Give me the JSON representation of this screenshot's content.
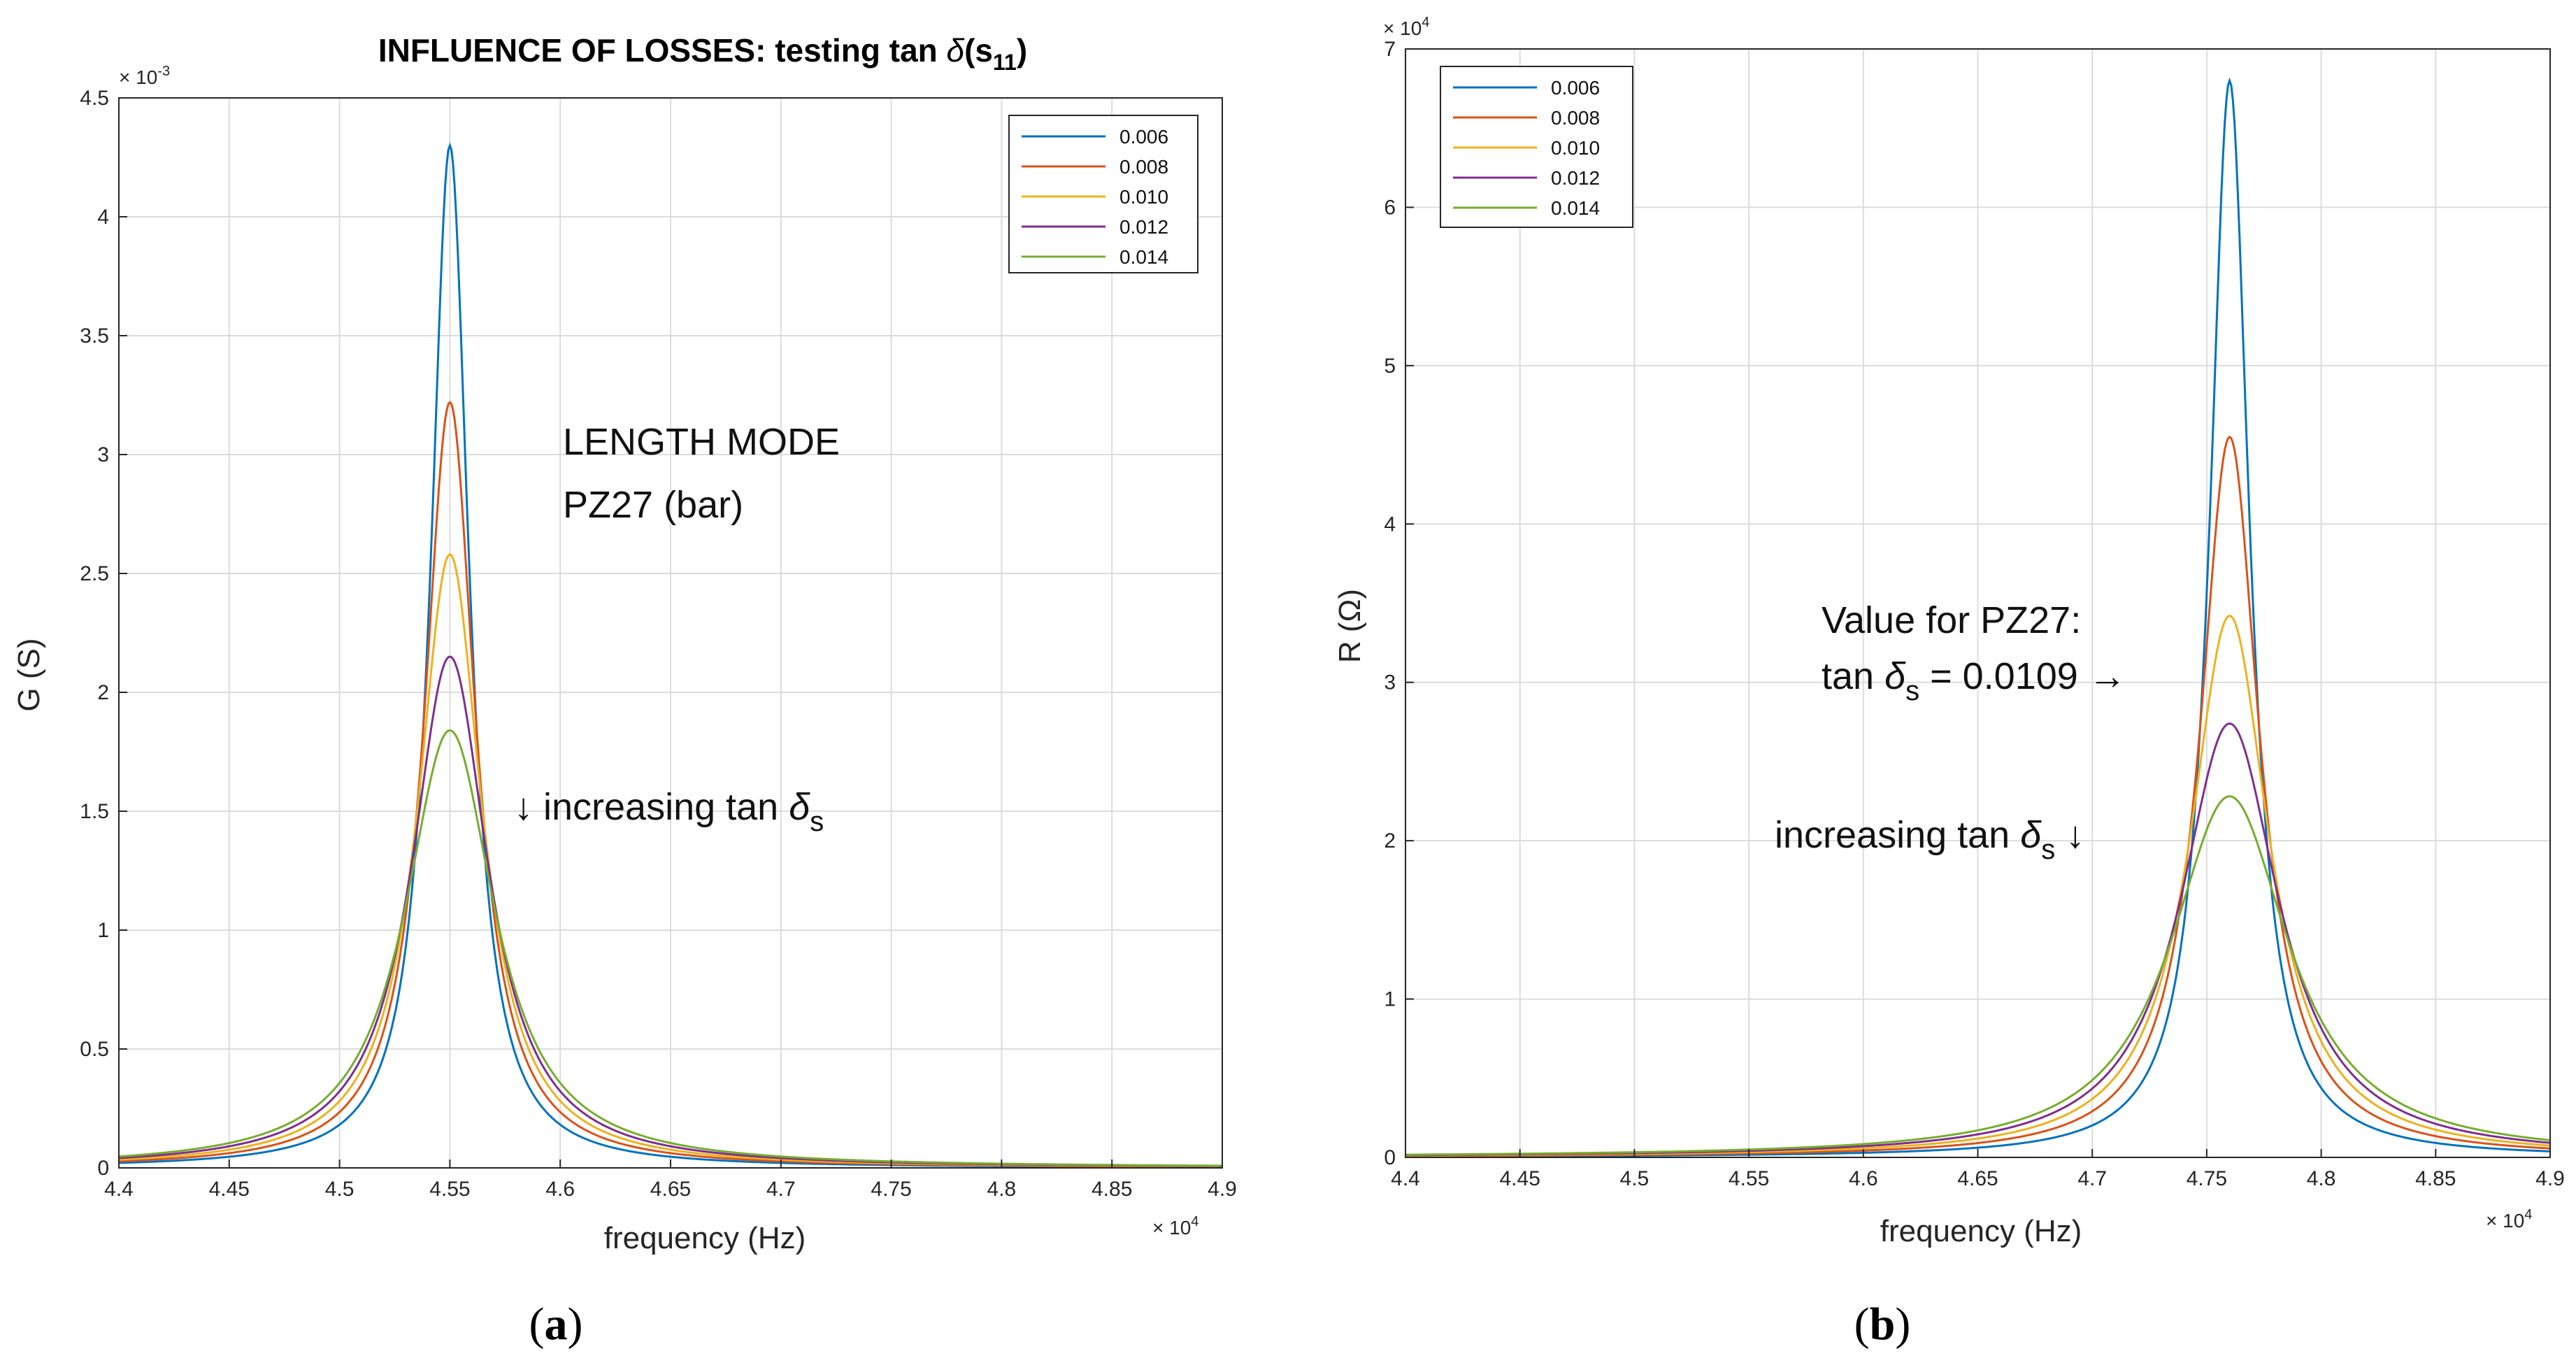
{
  "chart_data": [
    {
      "type": "line",
      "panel_caption_open": "(",
      "panel_caption_letter": "a",
      "panel_caption_close": ")",
      "title_main": "INFLUENCE OF LOSSES: testing tan ",
      "title_delta": "δ",
      "title_paren": "(s",
      "title_sub": "11",
      "title_close": ")",
      "xlabel": "frequency (Hz)",
      "ylabel": "G (S)",
      "x_multiplier": "× 10",
      "x_multiplier_exp": "4",
      "y_multiplier": "× 10",
      "y_multiplier_exp": "-3",
      "xlim": [
        4.4,
        4.9
      ],
      "ylim": [
        0,
        4.5
      ],
      "x_ticks": [
        "4.4",
        "4.45",
        "4.5",
        "4.55",
        "4.6",
        "4.65",
        "4.7",
        "4.75",
        "4.8",
        "4.85",
        "4.9"
      ],
      "y_ticks": [
        "0",
        "0.5",
        "1",
        "1.5",
        "2",
        "2.5",
        "3",
        "3.5",
        "4",
        "4.5"
      ],
      "grid": true,
      "legend_position": "top-right",
      "resonance_x": 4.55,
      "series": [
        {
          "name": "0.006",
          "color": "#0072BD",
          "peak": 4.3
        },
        {
          "name": "0.008",
          "color": "#D95319",
          "peak": 3.22
        },
        {
          "name": "0.010",
          "color": "#EDB120",
          "peak": 2.58
        },
        {
          "name": "0.012",
          "color": "#7E2F8E",
          "peak": 2.15
        },
        {
          "name": "0.014",
          "color": "#77AC30",
          "peak": 1.84
        }
      ],
      "annotations": {
        "mode_line1": "LENGTH MODE",
        "mode_line2": "PZ27 (bar)",
        "arrow": "↓",
        "increasing": " increasing tan ",
        "delta": "δ",
        "sub_s": "s"
      }
    },
    {
      "type": "line",
      "panel_caption_open": "(",
      "panel_caption_letter": "b",
      "panel_caption_close": ")",
      "xlabel": "frequency (Hz)",
      "ylabel": "R (Ω)",
      "x_multiplier": "× 10",
      "x_multiplier_exp": "4",
      "y_multiplier": "× 10",
      "y_multiplier_exp": "4",
      "xlim": [
        4.4,
        4.9
      ],
      "ylim": [
        0,
        7
      ],
      "x_ticks": [
        "4.4",
        "4.45",
        "4.5",
        "4.55",
        "4.6",
        "4.65",
        "4.7",
        "4.75",
        "4.8",
        "4.85",
        "4.9"
      ],
      "y_ticks": [
        "0",
        "1",
        "2",
        "3",
        "4",
        "5",
        "6",
        "7"
      ],
      "grid": true,
      "legend_position": "top-left",
      "resonance_x": 4.76,
      "series": [
        {
          "name": "0.006",
          "color": "#0072BD",
          "peak": 6.8
        },
        {
          "name": "0.008",
          "color": "#D95319",
          "peak": 4.55
        },
        {
          "name": "0.010",
          "color": "#EDB120",
          "peak": 3.42
        },
        {
          "name": "0.012",
          "color": "#7E2F8E",
          "peak": 2.74
        },
        {
          "name": "0.014",
          "color": "#77AC30",
          "peak": 2.28
        }
      ],
      "annotations": {
        "value_line1": "Value for PZ27:",
        "tan_text": "tan ",
        "delta": "δ",
        "sub_s": "s",
        "value_eq": " = 0.0109 →",
        "increasing": "increasing tan ",
        "arrow_down": " ↓"
      }
    }
  ]
}
